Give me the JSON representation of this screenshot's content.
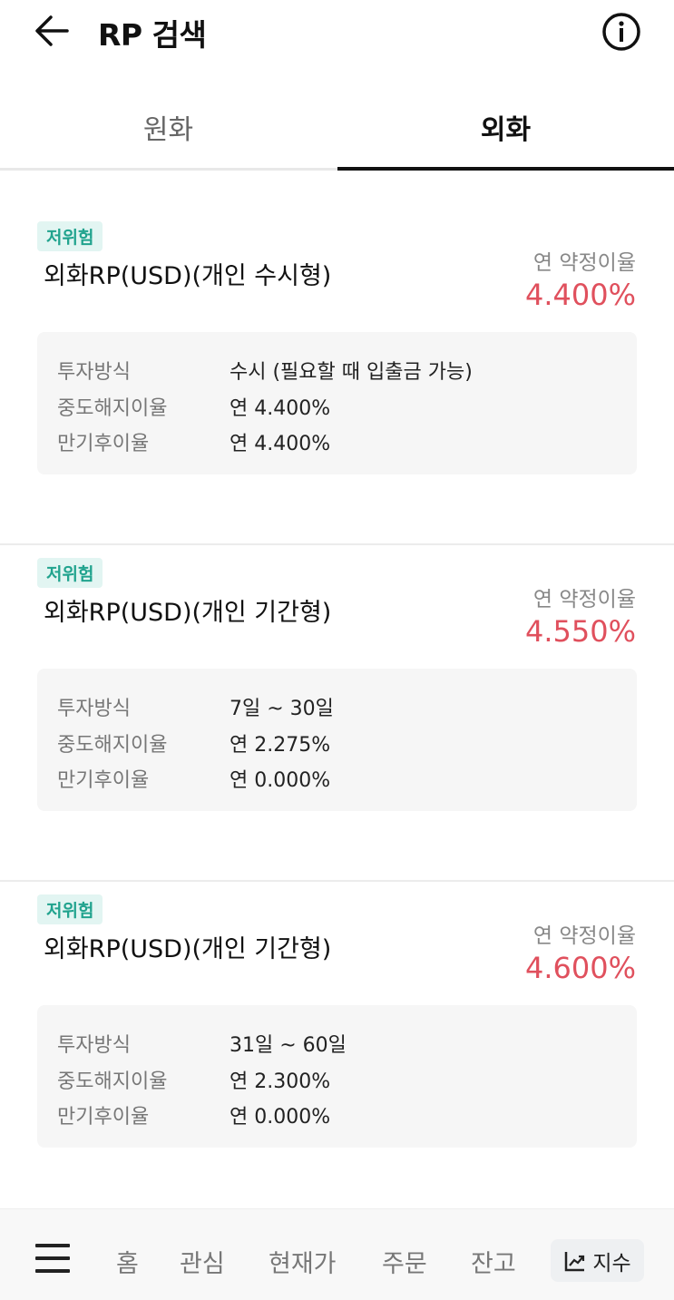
{
  "header": {
    "title": "RP 검색",
    "back_icon": "arrow-left-icon",
    "info_icon": "info-circle-icon"
  },
  "tabs": [
    {
      "label": "원화",
      "active": false
    },
    {
      "label": "외화",
      "active": true
    }
  ],
  "products": [
    {
      "badge": "저위험",
      "name": "외화RP(USD)(개인 수시형)",
      "rate_label": "연 약정이율",
      "rate": "4.400%",
      "details": [
        {
          "k": "투자방식",
          "v": "수시 (필요할 때 입출금 가능)"
        },
        {
          "k": "중도해지이율",
          "v": "연 4.400%"
        },
        {
          "k": "만기후이율",
          "v": "연 4.400%"
        }
      ]
    },
    {
      "badge": "저위험",
      "name": "외화RP(USD)(개인 기간형)",
      "rate_label": "연 약정이율",
      "rate": "4.550%",
      "details": [
        {
          "k": "투자방식",
          "v": " 7일 ~ 30일"
        },
        {
          "k": "중도해지이율",
          "v": "연 2.275%"
        },
        {
          "k": "만기후이율",
          "v": "연 0.000%"
        }
      ]
    },
    {
      "badge": "저위험",
      "name": "외화RP(USD)(개인 기간형)",
      "rate_label": "연 약정이율",
      "rate": "4.600%",
      "details": [
        {
          "k": "투자방식",
          "v": " 31일 ~ 60일"
        },
        {
          "k": "중도해지이율",
          "v": "연 2.300%"
        },
        {
          "k": "만기후이율",
          "v": "연 0.000%"
        }
      ]
    }
  ],
  "bottom_nav": {
    "menu_icon": "hamburger-icon",
    "items": [
      "홈",
      "관심",
      "현재가",
      "주문",
      "잔고"
    ],
    "index_label": "지수",
    "index_icon": "trending-chart-icon"
  },
  "colors": {
    "rate": "#e0505d",
    "badge_text": "#21a38e",
    "badge_bg": "#e2f5f2"
  }
}
